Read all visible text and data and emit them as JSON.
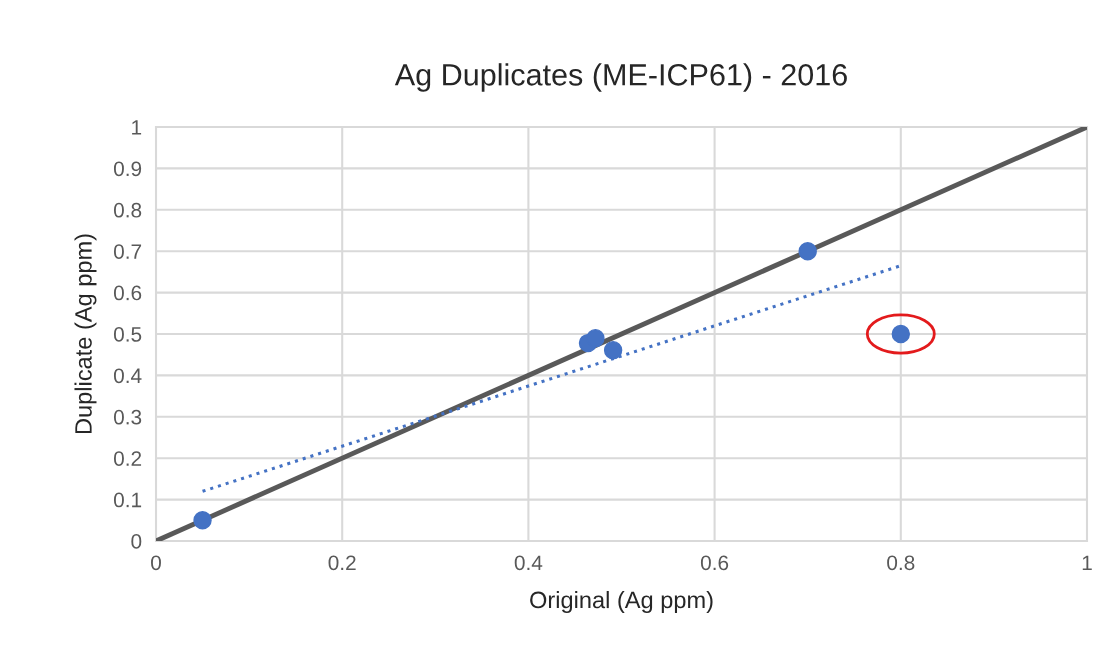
{
  "chart_data": {
    "type": "scatter",
    "title": "Ag Duplicates (ME-ICP61) - 2016",
    "xlabel": "Original (Ag ppm)",
    "ylabel": "Duplicate (Ag ppm)",
    "series": [
      {
        "type": "line",
        "color": "#595959",
        "x": [
          0,
          1
        ],
        "values": [
          0,
          1
        ],
        "line_style": "solid"
      },
      {
        "type": "line",
        "color": "#4472c4",
        "x": [
          0.05,
          0.8
        ],
        "values": [
          0.12,
          0.665
        ],
        "line_style": "dotted"
      },
      {
        "color": "#4472c4",
        "x": [
          0.05,
          0.464,
          0.472,
          0.491,
          0.7,
          0.8
        ],
        "values": [
          0.05,
          0.478,
          0.49,
          0.461,
          0.7,
          0.5
        ],
        "marker": "circle"
      }
    ],
    "xlim": [
      0,
      1
    ],
    "ylim": [
      0,
      1
    ],
    "xticks": [
      0,
      0.2,
      0.4,
      0.6,
      0.8,
      1
    ],
    "yticks": [
      0,
      0.1,
      0.2,
      0.3,
      0.4,
      0.5,
      0.6,
      0.7,
      0.8,
      0.9,
      1
    ],
    "grid": true,
    "legend": false
  }
}
